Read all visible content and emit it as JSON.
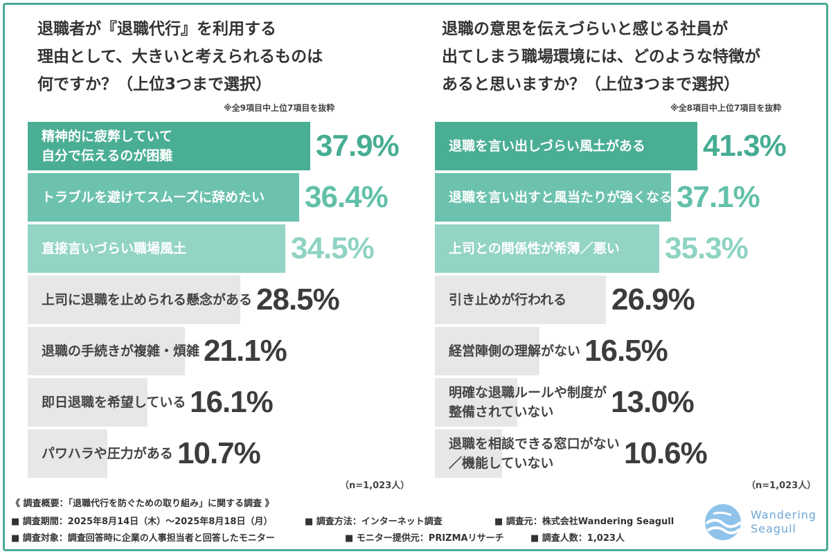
{
  "chart_data": [
    {
      "type": "bar",
      "orientation": "horizontal",
      "title": "退職者が『退職代行』を利用する\n理由として、大きいと考えられるものは\n何ですか？（上位3つまで選択）",
      "note": "※全9項目中上位7項目を抜粋",
      "sample": "（n=1,023人）",
      "categories": [
        "精神的に疲弊していて\n自分で伝えるのが困難",
        "トラブルを避けてスムーズに辞めたい",
        "直接言いづらい職場風土",
        "上司に退職を止められる懸念がある",
        "退職の手続きが複雑・煩雑",
        "即日退職を希望している",
        "パワハラや圧力がある"
      ],
      "values": [
        37.9,
        36.4,
        34.5,
        28.5,
        21.1,
        16.1,
        10.7
      ],
      "value_labels": [
        "37.9%",
        "36.4%",
        "34.5%",
        "28.5%",
        "21.1%",
        "16.1%",
        "10.7%"
      ],
      "xlim": [
        0,
        52
      ],
      "unit": "%"
    },
    {
      "type": "bar",
      "orientation": "horizontal",
      "title": "退職の意思を伝えづらいと感じる社員が\n出てしまう職場環境には、どのような特徴が\nあると思いますか？（上位3つまで選択）",
      "note": "※全8項目中上位7項目を抜粋",
      "sample": "（n=1,023人）",
      "categories": [
        "退職を言い出しづらい風土がある",
        "退職を言い出すと風当たりが強くなる",
        "上司との関係性が希薄／悪い",
        "引き止めが行われる",
        "経営陣側の理解がない",
        "明確な退職ルールや制度が\n整備されていない",
        "退職を相談できる窓口がない\n／機能していない"
      ],
      "values": [
        41.3,
        37.1,
        35.3,
        26.9,
        16.5,
        13.0,
        10.6
      ],
      "value_labels": [
        "41.3%",
        "37.1%",
        "35.3%",
        "26.9%",
        "16.5%",
        "13.0%",
        "10.6%"
      ],
      "xlim": [
        0,
        61
      ],
      "unit": "%"
    }
  ],
  "colors": {
    "rank1_fill": "#4aae95",
    "rank2_fill": "#6cc2ae",
    "rank3_fill": "#93d4c4",
    "other_fill": "#e7e7e7",
    "rank1_value": "#46ad93",
    "rank2_value": "#62c0a9",
    "rank3_value": "#8fd3c3",
    "other_value": "#3c3c3c",
    "rank_label": "#ffffff",
    "other_label": "#444444"
  },
  "footer": {
    "overview": "《 調査概要：「退職代行を防ぐための取り組み」に関する調査 》",
    "period": "■ 調査期間：2025年8月14日（木）～2025年8月18日（月）",
    "method": "■ 調査方法：インターネット調査",
    "source": "■ 調査元：株式会社Wandering Seagull",
    "target": "■ 調査対象：調査回答時に企業の人事担当者と回答したモニター",
    "provider": "■ モニター提供元：PRIZMAリサーチ",
    "count": "■ 調査人数：1,023人"
  },
  "logo": {
    "line1": "Wandering",
    "line2": "Seagull",
    "icon": "wave-logo-icon"
  }
}
